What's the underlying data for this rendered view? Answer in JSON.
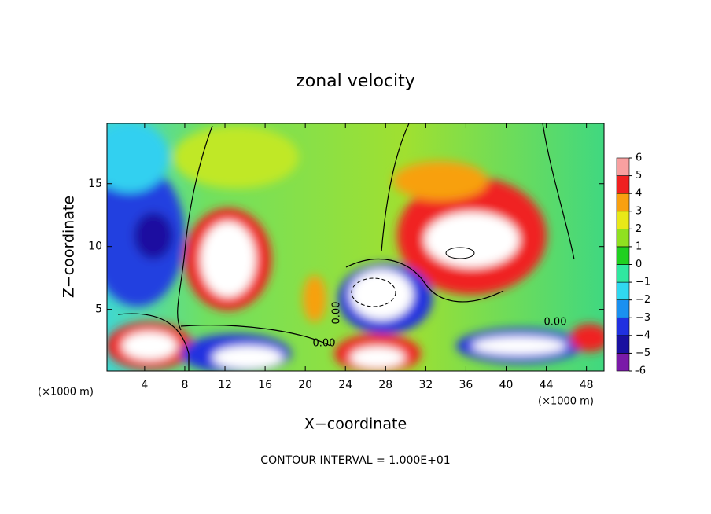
{
  "chart_data": {
    "type": "contour",
    "title": "zonal velocity",
    "x_label": "X−coordinate",
    "y_label": "Z−coordinate",
    "x_unit_left": "(×1000 m)",
    "x_unit_right": "(×1000 m)",
    "annotation": "CONTOUR INTERVAL = 1.000E+01",
    "contour_labels": [
      "0.00",
      "0.00",
      "0.00"
    ],
    "xlim": [
      0.25,
      49.75
    ],
    "xticks": [
      4,
      8,
      12,
      16,
      20,
      24,
      28,
      32,
      36,
      40,
      44,
      48
    ],
    "ylim": [
      0.1,
      19.8
    ],
    "yticks": [
      5,
      10,
      15
    ],
    "colorbar": {
      "ticks": [
        -6,
        {
          "value": -5,
          "label": "−5"
        },
        {
          "value": -4,
          "label": "−4"
        },
        {
          "value": -3,
          "label": "−3"
        },
        {
          "value": -2,
          "label": "−2"
        },
        {
          "value": -1,
          "label": "−1"
        },
        0,
        1,
        2,
        3,
        4,
        5,
        6
      ],
      "colors": [
        "#7a1aa8",
        "#1a10a0",
        "#2030e0",
        "#1a90f0",
        "#30d8f0",
        "#30e8a0",
        "#20d020",
        "#90e020",
        "#e8e818",
        "#f8a010",
        "#f02020",
        "#f8a0a0"
      ]
    }
  }
}
